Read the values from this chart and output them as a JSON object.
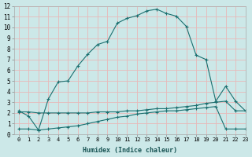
{
  "xlabel": "Humidex (Indice chaleur)",
  "bg_color": "#cce8e8",
  "grid_color": "#e8b8b8",
  "line_color": "#1a7070",
  "xlim": [
    -0.5,
    23
  ],
  "ylim": [
    0,
    12
  ],
  "xticks": [
    0,
    1,
    2,
    3,
    4,
    5,
    6,
    7,
    8,
    9,
    10,
    11,
    12,
    13,
    14,
    15,
    16,
    17,
    18,
    19,
    20,
    21,
    22,
    23
  ],
  "yticks": [
    0,
    1,
    2,
    3,
    4,
    5,
    6,
    7,
    8,
    9,
    10,
    11,
    12
  ],
  "line1_x": [
    0,
    1,
    2,
    3,
    4,
    5,
    6,
    7,
    8,
    9,
    10,
    11,
    12,
    13,
    14,
    15,
    16,
    17,
    18,
    19,
    20,
    21,
    22,
    23
  ],
  "line1_y": [
    2.2,
    1.7,
    0.4,
    3.3,
    4.9,
    5.0,
    6.4,
    7.5,
    8.4,
    8.7,
    10.4,
    10.85,
    11.1,
    11.55,
    11.7,
    11.3,
    11.05,
    10.1,
    7.4,
    7.0,
    3.1,
    4.5,
    3.1,
    2.2
  ],
  "line2_x": [
    0,
    1,
    2,
    3,
    4,
    5,
    6,
    7,
    8,
    9,
    10,
    11,
    12,
    13,
    14,
    15,
    16,
    17,
    18,
    19,
    20,
    21,
    22,
    23
  ],
  "line2_y": [
    2.1,
    2.1,
    2.0,
    2.0,
    2.0,
    2.0,
    2.0,
    2.0,
    2.1,
    2.1,
    2.1,
    2.2,
    2.2,
    2.3,
    2.4,
    2.4,
    2.5,
    2.6,
    2.7,
    2.9,
    3.0,
    3.1,
    2.2,
    2.2
  ],
  "line3_x": [
    0,
    1,
    2,
    3,
    4,
    5,
    6,
    7,
    8,
    9,
    10,
    11,
    12,
    13,
    14,
    15,
    16,
    17,
    18,
    19,
    20,
    21,
    22,
    23
  ],
  "line3_y": [
    0.5,
    0.5,
    0.4,
    0.5,
    0.6,
    0.7,
    0.8,
    1.0,
    1.2,
    1.4,
    1.6,
    1.7,
    1.9,
    2.0,
    2.1,
    2.2,
    2.2,
    2.3,
    2.4,
    2.5,
    2.6,
    0.5,
    0.5,
    0.5
  ]
}
